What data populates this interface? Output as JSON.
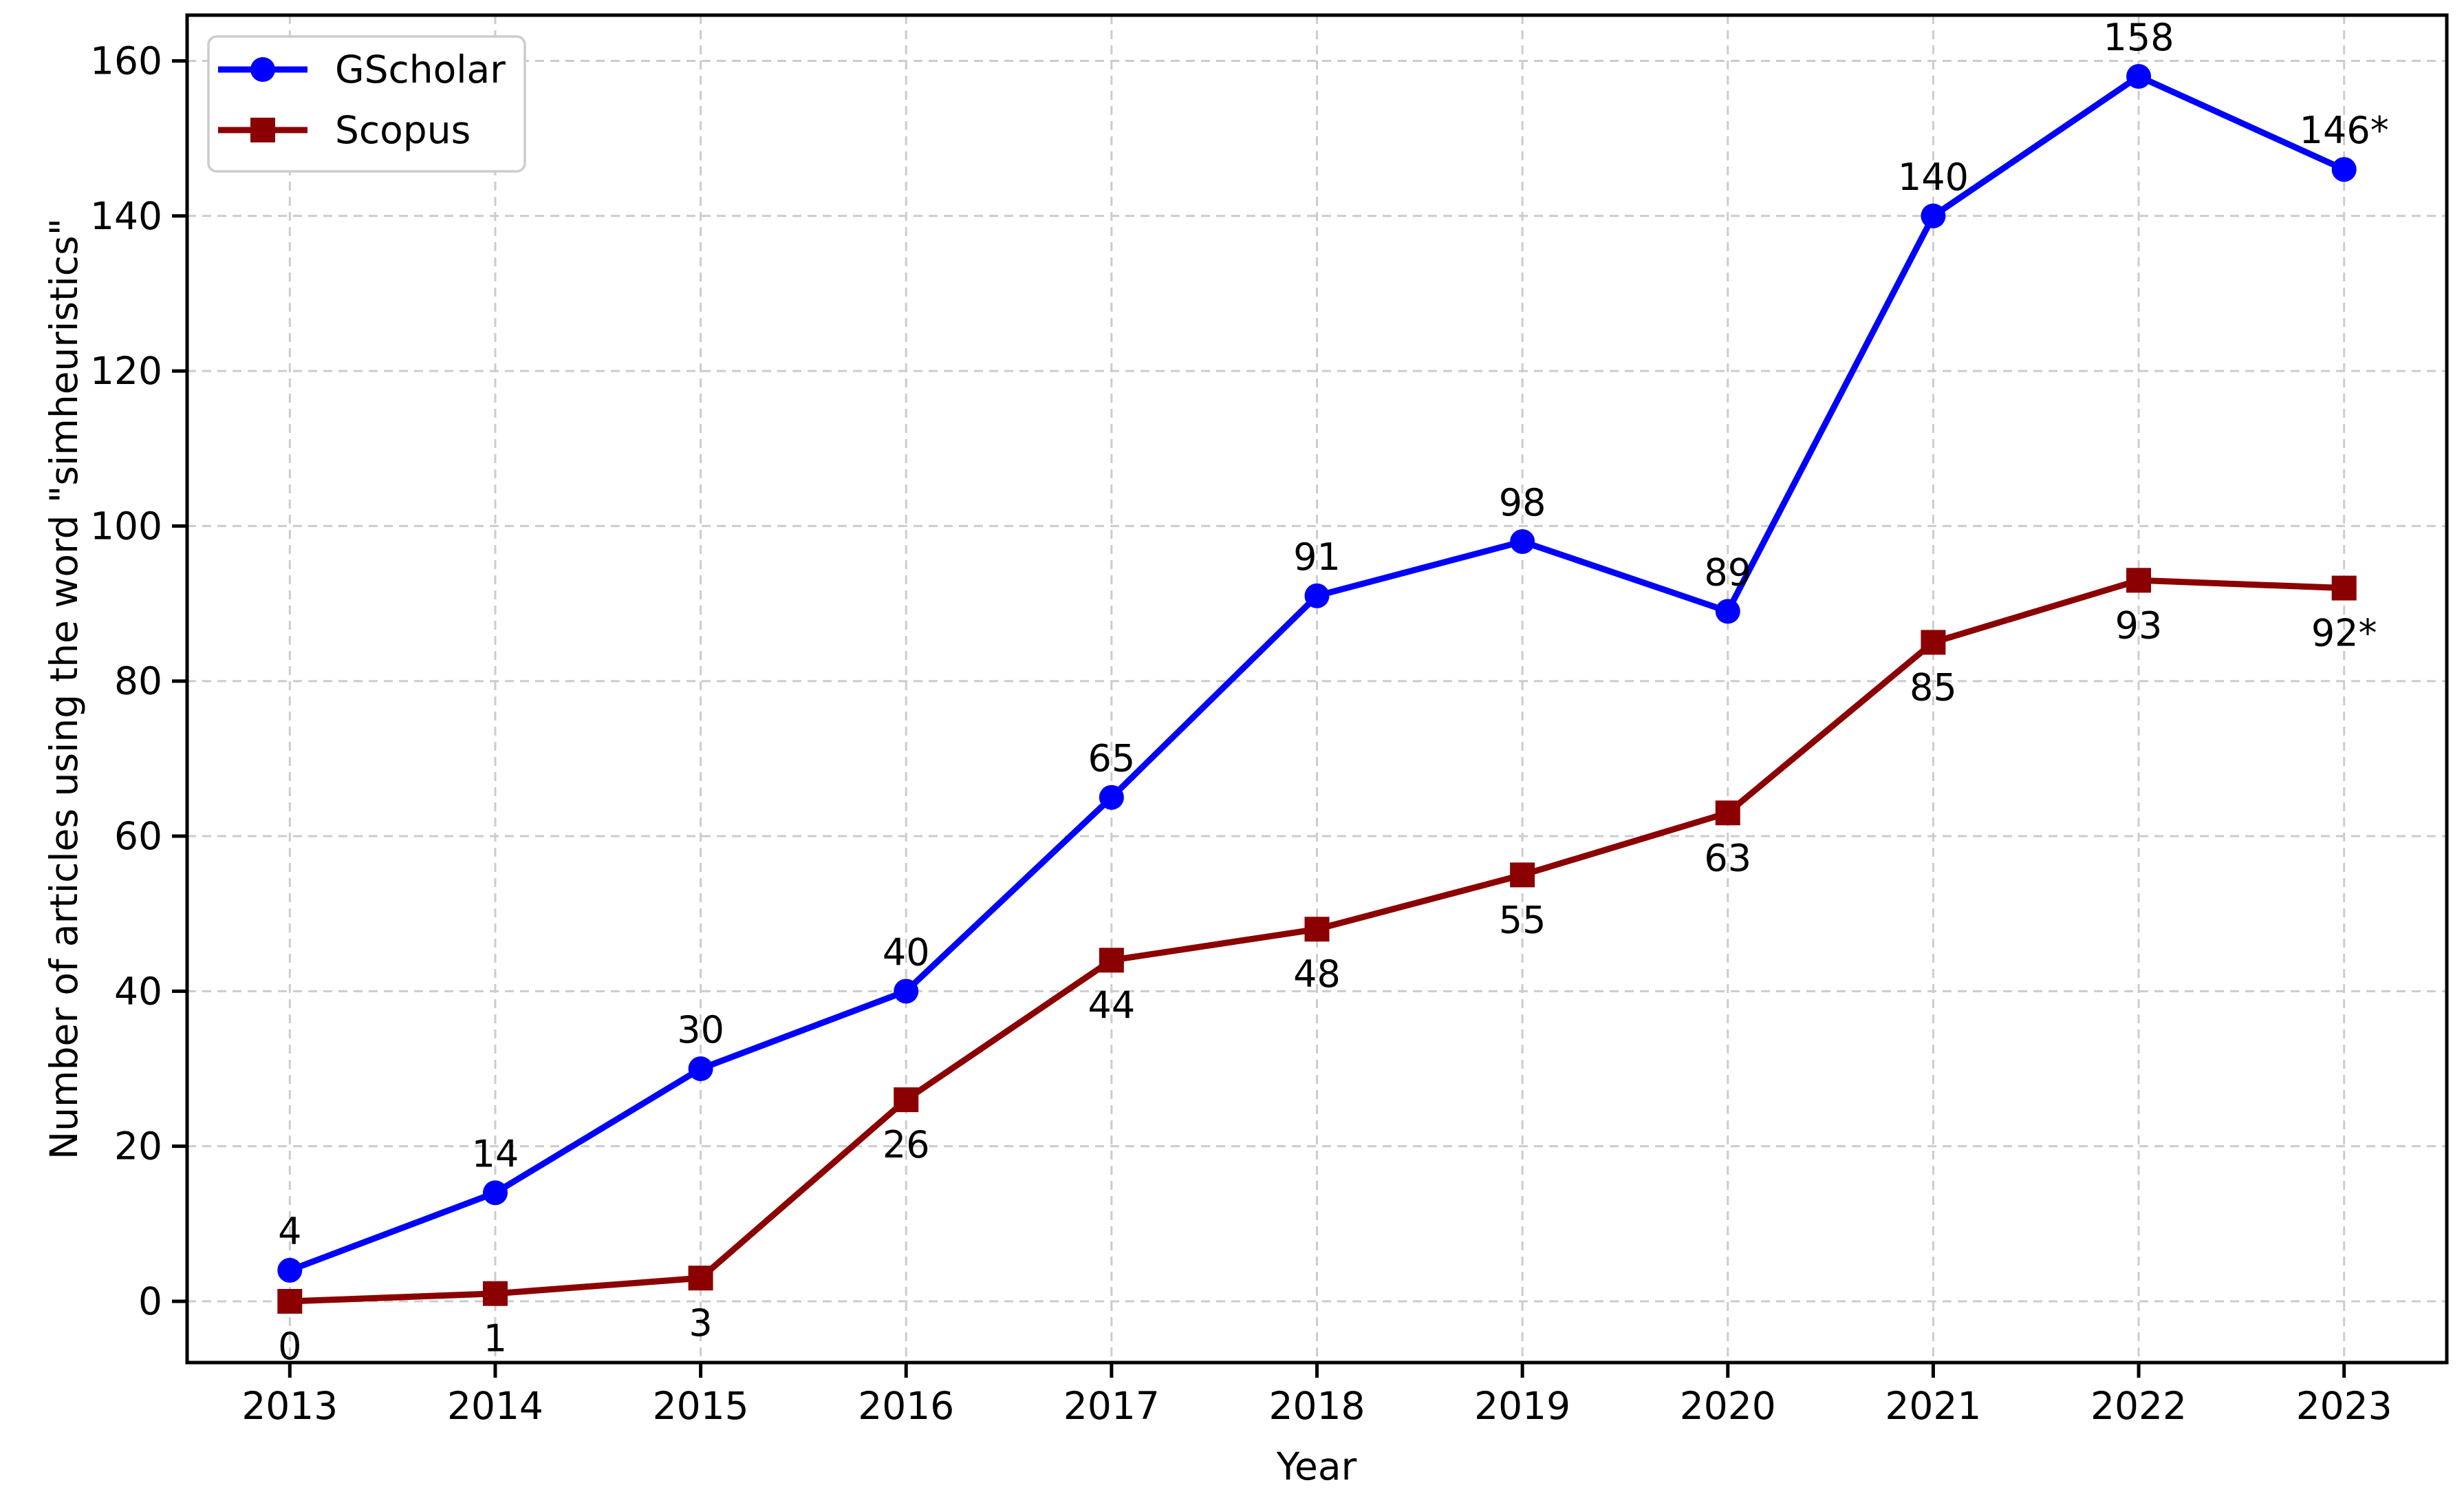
{
  "chart_data": {
    "type": "line",
    "title": "",
    "xlabel": "Year",
    "ylabel": "Number of articles using the word \"simheuristics\"",
    "categories": [
      2013,
      2014,
      2015,
      2016,
      2017,
      2018,
      2019,
      2020,
      2021,
      2022,
      2023
    ],
    "series": [
      {
        "name": "GScholar",
        "color": "#0000ff",
        "marker": "circle",
        "values": [
          4,
          14,
          30,
          40,
          65,
          91,
          98,
          89,
          140,
          158,
          146
        ],
        "point_labels": [
          "4",
          "14",
          "30",
          "40",
          "65",
          "91",
          "98",
          "89",
          "140",
          "158",
          "146*"
        ],
        "label_side": "above"
      },
      {
        "name": "Scopus",
        "color": "#8b0000",
        "marker": "square",
        "values": [
          0,
          1,
          3,
          26,
          44,
          48,
          55,
          63,
          85,
          93,
          92
        ],
        "point_labels": [
          "0",
          "1",
          "3",
          "26",
          "44",
          "48",
          "55",
          "63",
          "85",
          "93",
          "92*"
        ],
        "label_side": "below"
      }
    ],
    "xticks": [
      2013,
      2014,
      2015,
      2016,
      2017,
      2018,
      2019,
      2020,
      2021,
      2022,
      2023
    ],
    "yticks": [
      0,
      20,
      40,
      60,
      80,
      100,
      120,
      140,
      160
    ],
    "xlim": [
      2012.5,
      2023.5
    ],
    "ylim": [
      -7.9,
      165.9
    ],
    "grid": true,
    "grid_color": "#cccccc",
    "axis_color": "#000000",
    "background_color": "#ffffff",
    "legend_position": "upper-left",
    "legend_border_color": "#cccccc"
  }
}
